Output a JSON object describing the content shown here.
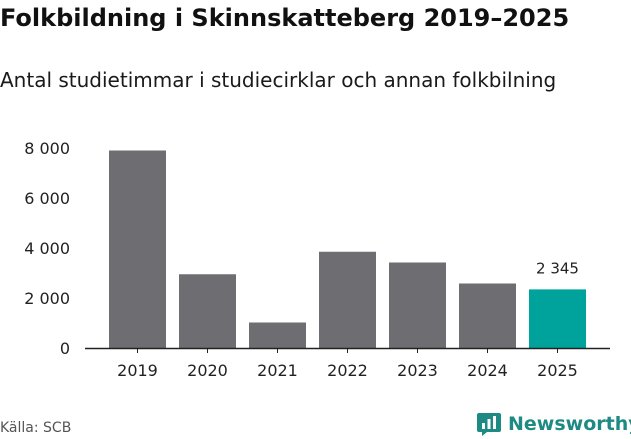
{
  "header": {
    "title": "Folkbildning i Skinnskatteberg 2019–2025",
    "subtitle": "Antal studietimmar i studiecirklar och annan folkbilning"
  },
  "footer": {
    "source": "Källa: SCB",
    "brand": "Newsworthy",
    "brand_icon": "chart-logo-icon"
  },
  "colors": {
    "bar": "#6e6d72",
    "highlight": "#00a39b",
    "axis": "#222222",
    "brand": "#1d8a84"
  },
  "chart_data": {
    "type": "bar",
    "title": "Folkbildning i Skinnskatteberg 2019–2025",
    "subtitle": "Antal studietimmar i studiecirklar och annan folkbilning",
    "categories": [
      "2019",
      "2020",
      "2021",
      "2022",
      "2023",
      "2024",
      "2025"
    ],
    "values": [
      7900,
      2950,
      1020,
      3850,
      3420,
      2580,
      2345
    ],
    "highlight_index": 6,
    "data_labels": [
      {
        "index": 6,
        "text": "2 345"
      }
    ],
    "ylim": [
      0,
      8000
    ],
    "yticks": [
      0,
      2000,
      4000,
      6000,
      8000
    ],
    "ytick_labels": [
      "0",
      "2 000",
      "4 000",
      "6 000",
      "8 000"
    ],
    "grid": false,
    "legend": "none"
  }
}
